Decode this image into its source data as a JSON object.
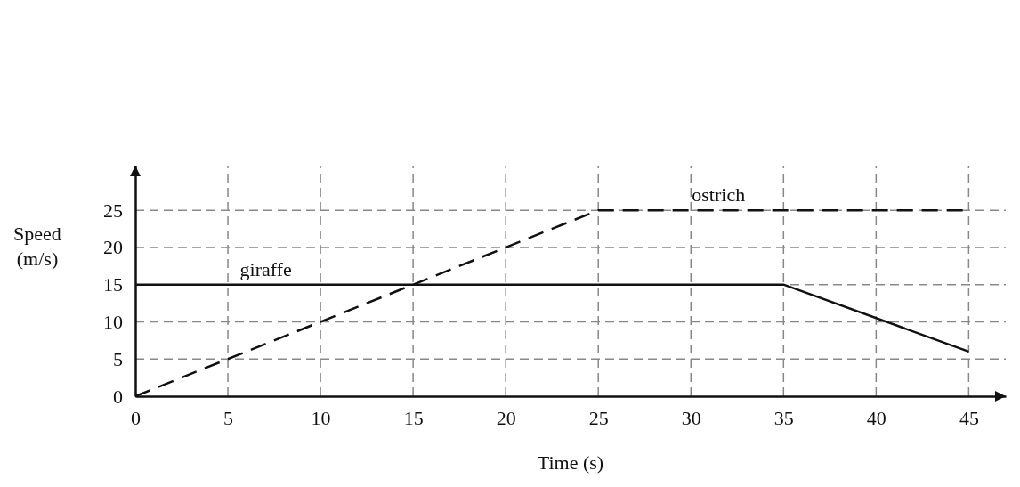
{
  "chart_data": {
    "type": "line",
    "xlabel": "Time (s)",
    "ylabel": "Speed (m/s)",
    "xlim": [
      0,
      47
    ],
    "ylim": [
      0,
      31
    ],
    "xticks": [
      0,
      5,
      10,
      15,
      20,
      25,
      30,
      35,
      40,
      45
    ],
    "yticks": [
      0,
      5,
      10,
      15,
      20,
      25
    ],
    "grid": true,
    "legend": false,
    "marker": "none",
    "series": [
      {
        "name": "giraffe",
        "color": "#111111",
        "line_style": "solid",
        "x": [
          0,
          35,
          45
        ],
        "values": [
          15,
          15,
          6
        ]
      },
      {
        "name": "ostrich",
        "color": "#111111",
        "line_style": "dashed",
        "x": [
          0,
          25,
          45
        ],
        "values": [
          0,
          25,
          25
        ]
      }
    ]
  }
}
